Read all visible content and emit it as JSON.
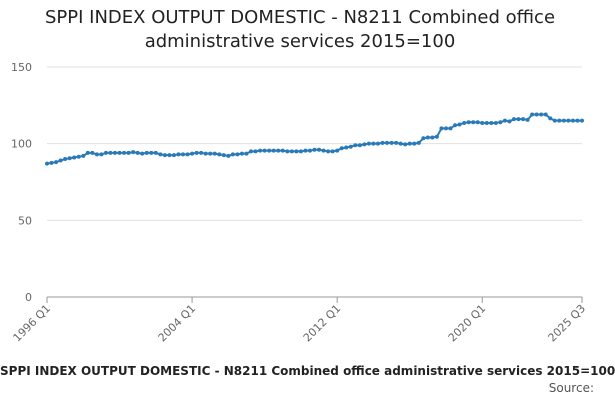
{
  "chart_data": {
    "type": "line",
    "title": "SPPI INDEX OUTPUT DOMESTIC - N8211 Combined office administrative services 2015=100",
    "caption": "SPPI INDEX OUTPUT DOMESTIC - N8211 Combined office administrative services 2015=100",
    "source": "Source:",
    "color": "#2a7ab8",
    "categories": [
      "1996 Q1",
      null,
      null,
      null,
      null,
      null,
      null,
      null,
      null,
      null,
      null,
      null,
      null,
      null,
      null,
      null,
      null,
      null,
      null,
      null,
      null,
      null,
      null,
      null,
      null,
      null,
      null,
      null,
      null,
      null,
      null,
      null,
      "2004 Q1",
      null,
      null,
      null,
      null,
      null,
      null,
      null,
      null,
      null,
      null,
      null,
      null,
      null,
      null,
      null,
      null,
      null,
      null,
      null,
      null,
      null,
      null,
      null,
      null,
      null,
      null,
      null,
      null,
      null,
      null,
      null,
      "2012 Q1",
      null,
      null,
      null,
      null,
      null,
      null,
      null,
      null,
      null,
      null,
      null,
      null,
      null,
      null,
      null,
      null,
      null,
      null,
      null,
      null,
      null,
      null,
      null,
      null,
      null,
      null,
      null,
      null,
      null,
      null,
      null,
      "2020 Q1",
      null,
      null,
      null,
      null,
      null,
      null,
      null,
      null,
      null,
      null,
      null,
      null,
      null,
      null,
      null,
      null,
      null,
      null,
      null,
      null,
      null,
      "2025 Q3"
    ],
    "values": [
      87,
      87.5,
      88,
      89,
      90,
      90.5,
      91,
      91.5,
      92,
      94,
      94,
      93,
      93,
      94,
      94,
      94,
      94,
      94,
      94,
      94.5,
      94,
      93.5,
      94,
      94,
      94,
      93,
      92.5,
      92.5,
      92.5,
      93,
      93,
      93,
      93.5,
      94,
      94,
      93.5,
      93.5,
      93.5,
      93,
      92.5,
      92,
      93,
      93,
      93.5,
      93.5,
      95,
      95,
      95.5,
      95.5,
      95.5,
      95.5,
      95.5,
      95.5,
      95,
      95,
      95,
      95,
      95.5,
      95.5,
      96,
      96,
      95.5,
      95,
      95,
      95.5,
      97,
      97.5,
      98,
      99,
      99,
      99.5,
      100,
      100,
      100,
      100.5,
      100.5,
      100.5,
      100.5,
      100,
      99.5,
      100,
      100,
      100.5,
      103.5,
      104,
      104,
      104.5,
      110,
      110,
      110,
      112,
      112.5,
      113.5,
      114,
      114,
      114,
      113.5,
      113.5,
      113.5,
      113.5,
      114,
      115,
      114.5,
      116,
      116,
      116,
      115.5,
      119,
      119,
      119,
      119,
      116.5,
      115,
      115,
      115,
      115,
      115,
      115,
      115
    ],
    "ylim": [
      0,
      150
    ],
    "yticks": [
      0,
      50,
      100,
      150
    ],
    "grid": true
  }
}
